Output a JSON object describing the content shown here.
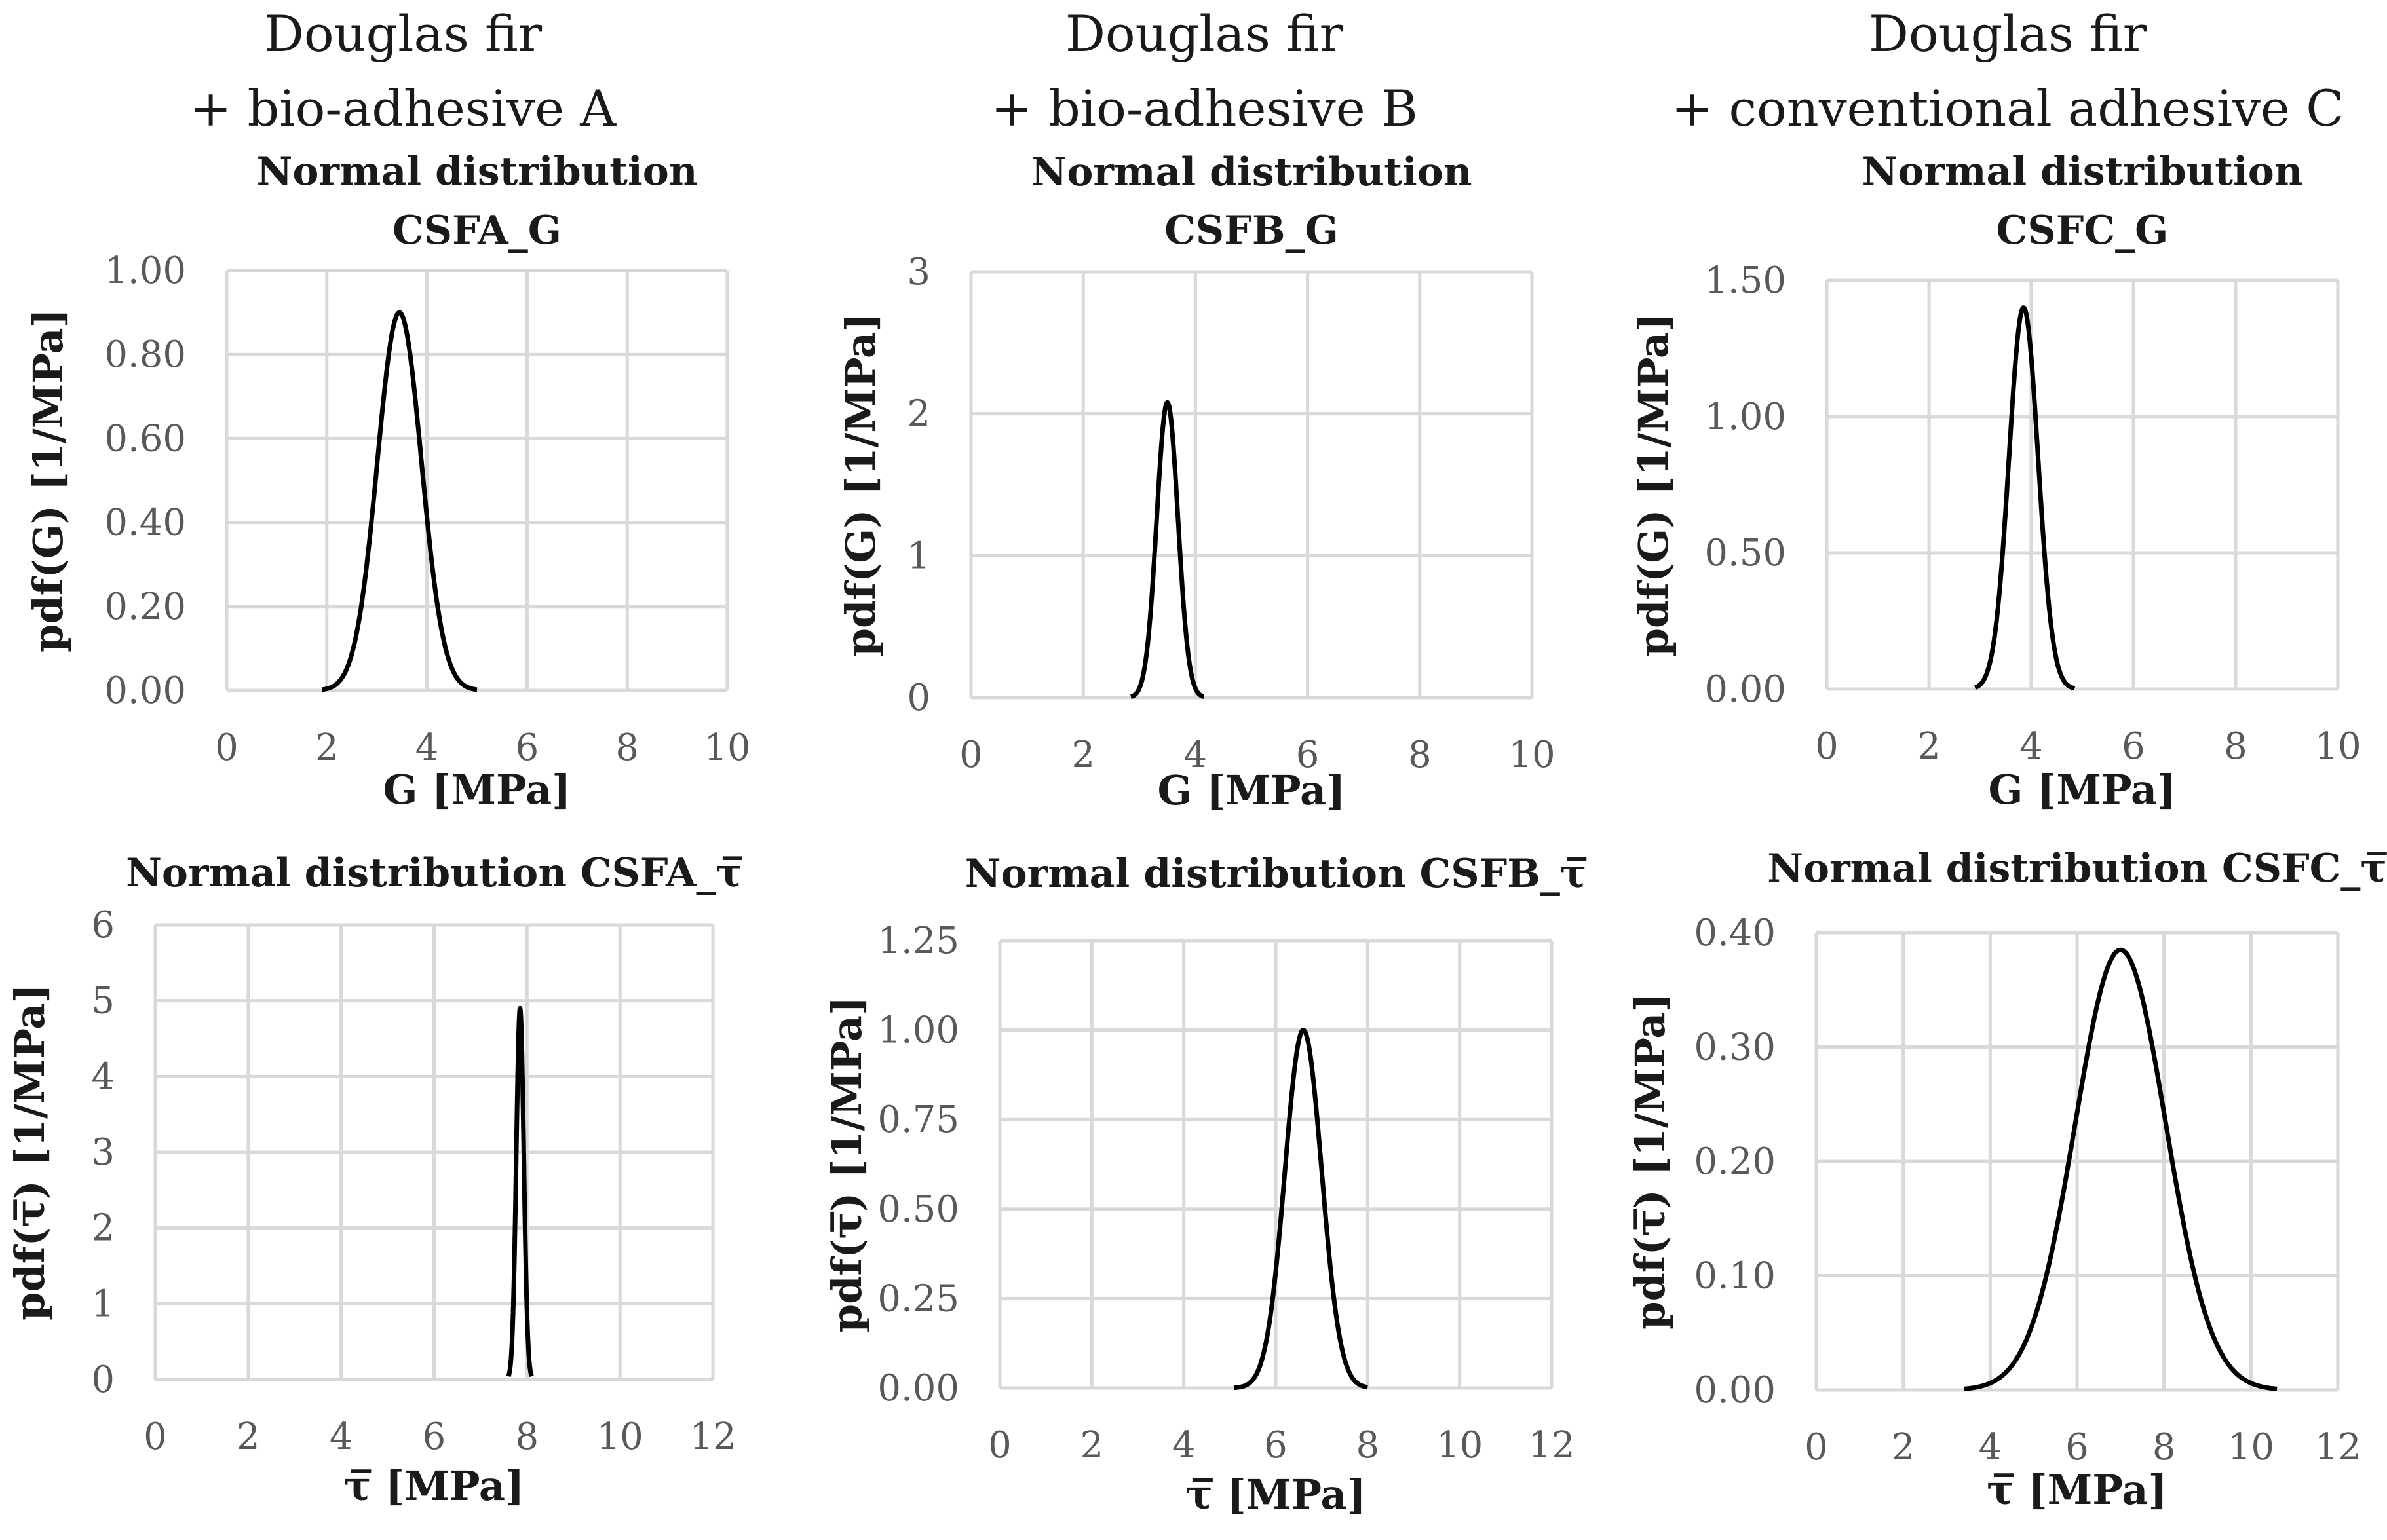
{
  "column_titles": [
    {
      "line1": "Douglas fir",
      "line2": "+ bio-adhesive A"
    },
    {
      "line1": "Douglas fir",
      "line2": "+ bio-adhesive B"
    },
    {
      "line1": "Douglas fir",
      "line2": "+ conventional adhesive C"
    }
  ],
  "chart_data": [
    {
      "id": "csfa-g",
      "type": "line",
      "title_lines": [
        "Normal distribution",
        "CSFA_G"
      ],
      "xlabel": "G [MPa]",
      "ylabel": "pdf(G) [1/MPa]",
      "xlim": [
        0,
        10
      ],
      "xticks": [
        "0",
        "2",
        "4",
        "6",
        "8",
        "10"
      ],
      "ylim": [
        0,
        1.0
      ],
      "yticks": [
        "0.00",
        "0.20",
        "0.40",
        "0.60",
        "0.80",
        "1.00"
      ],
      "series": [
        {
          "name": "CSFA_G",
          "distribution": "normal",
          "mean": 3.45,
          "std": 0.44,
          "x_from": 1.9,
          "x_to": 5.0,
          "peak": 0.9
        }
      ]
    },
    {
      "id": "csfb-g",
      "type": "line",
      "title_lines": [
        "Normal distribution",
        "CSFB_G"
      ],
      "xlabel": "G [MPa]",
      "ylabel": "pdf(G) [1/MPa]",
      "xlim": [
        0,
        10
      ],
      "xticks": [
        "0",
        "2",
        "4",
        "6",
        "8",
        "10"
      ],
      "ylim": [
        0,
        3
      ],
      "yticks": [
        "0",
        "1",
        "2",
        "3"
      ],
      "series": [
        {
          "name": "CSFB_G",
          "distribution": "normal",
          "mean": 3.5,
          "std": 0.19,
          "x_from": 2.85,
          "x_to": 4.15,
          "peak": 2.08
        }
      ]
    },
    {
      "id": "csfc-g",
      "type": "line",
      "title_lines": [
        "Normal distribution",
        "CSFC_G"
      ],
      "xlabel": "G [MPa]",
      "ylabel": "pdf(G) [1/MPa]",
      "xlim": [
        0,
        10
      ],
      "xticks": [
        "0",
        "2",
        "4",
        "6",
        "8",
        "10"
      ],
      "ylim": [
        0,
        1.5
      ],
      "yticks": [
        "0.00",
        "0.50",
        "1.00",
        "1.50"
      ],
      "series": [
        {
          "name": "CSFC_G",
          "distribution": "normal",
          "mean": 3.85,
          "std": 0.285,
          "x_from": 2.9,
          "x_to": 4.85,
          "peak": 1.4
        }
      ]
    },
    {
      "id": "csfa-tau",
      "type": "line",
      "title_lines": [
        "Normal distribution CSFA_τ̅"
      ],
      "xlabel": "τ̅ [MPa]",
      "ylabel": "pdf(τ̅) [1/MPa]",
      "xlim": [
        0,
        12
      ],
      "xticks": [
        "0",
        "2",
        "4",
        "6",
        "8",
        "10",
        "12"
      ],
      "ylim": [
        0,
        6
      ],
      "yticks": [
        "0",
        "1",
        "2",
        "3",
        "4",
        "5",
        "6"
      ],
      "series": [
        {
          "name": "CSFA_τ̅",
          "distribution": "normal",
          "mean": 7.85,
          "std": 0.081,
          "x_from": 7.6,
          "x_to": 8.1,
          "peak": 4.9
        }
      ]
    },
    {
      "id": "csfb-tau",
      "type": "line",
      "title_lines": [
        "Normal distribution CSFB_τ̅"
      ],
      "xlabel": "τ̅ [MPa]",
      "ylabel": "pdf(τ̅) [1/MPa]",
      "xlim": [
        0,
        12
      ],
      "xticks": [
        "0",
        "2",
        "4",
        "6",
        "8",
        "10",
        "12"
      ],
      "ylim": [
        0,
        1.25
      ],
      "yticks": [
        "0.00",
        "0.25",
        "0.50",
        "0.75",
        "1.00",
        "1.25"
      ],
      "series": [
        {
          "name": "CSFB_τ̅",
          "distribution": "normal",
          "mean": 6.6,
          "std": 0.4,
          "x_from": 5.1,
          "x_to": 8.0,
          "peak": 1.0
        }
      ]
    },
    {
      "id": "csfc-tau",
      "type": "line",
      "title_lines": [
        "Normal distribution CSFC_τ̅"
      ],
      "xlabel": "τ̅ [MPa]",
      "ylabel": "pdf(τ̅) [1/MPa]",
      "xlim": [
        0,
        12
      ],
      "xticks": [
        "0",
        "2",
        "4",
        "6",
        "8",
        "10",
        "12"
      ],
      "ylim": [
        0,
        0.4
      ],
      "yticks": [
        "0.00",
        "0.10",
        "0.20",
        "0.30",
        "0.40"
      ],
      "series": [
        {
          "name": "CSFC_τ̅",
          "distribution": "normal",
          "mean": 7.0,
          "std": 1.04,
          "x_from": 3.4,
          "x_to": 10.6,
          "peak": 0.385
        }
      ]
    }
  ]
}
